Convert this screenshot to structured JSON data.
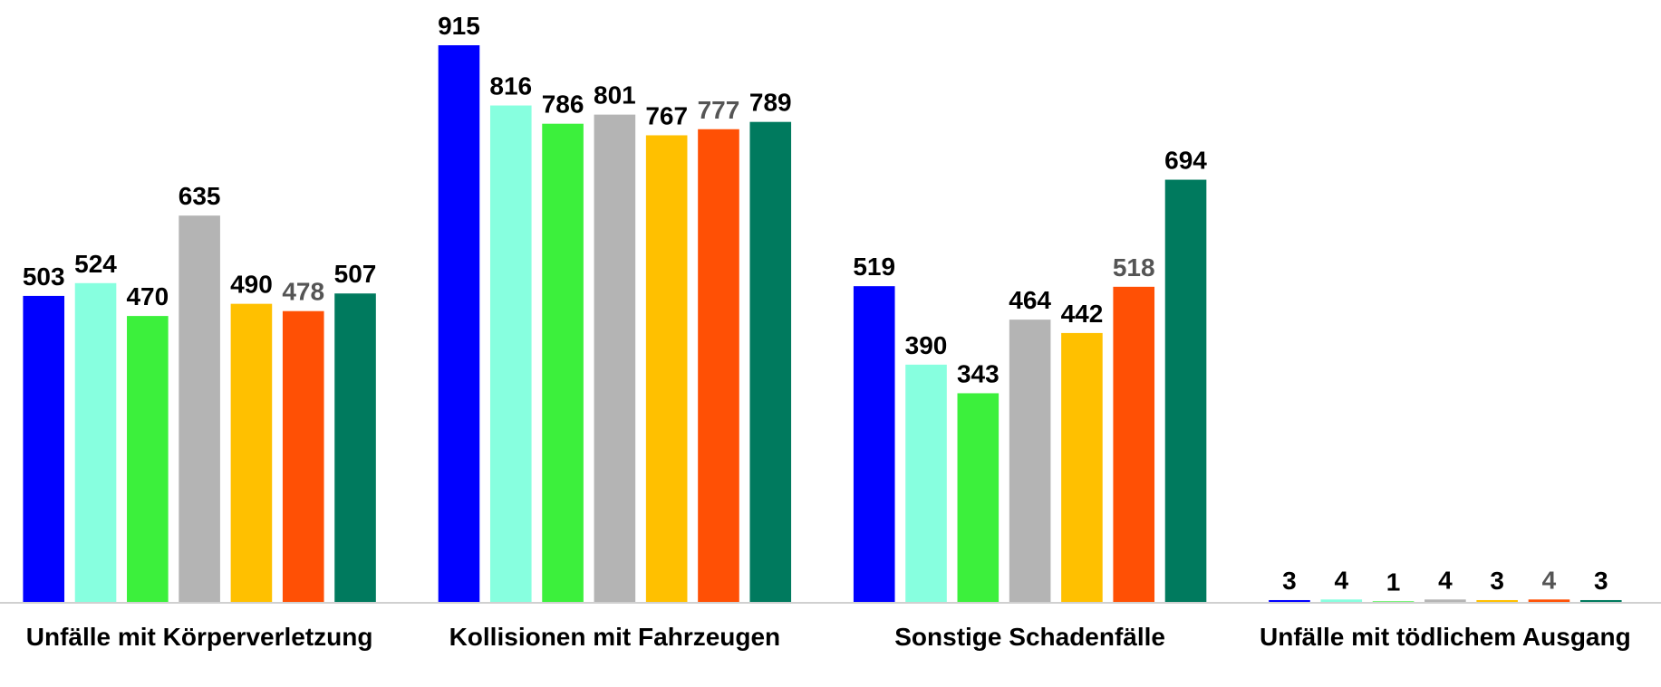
{
  "chart_data": {
    "type": "bar",
    "categories": [
      "Unfälle mit Körperverletzung",
      "Kollisionen mit Fahrzeugen",
      "Sonstige Schadenfälle",
      "Unfälle mit tödlichem Ausgang"
    ],
    "series": [
      {
        "color": "#0000ff",
        "label_color": "#000000",
        "values": [
          503,
          915,
          519,
          3
        ]
      },
      {
        "color": "#87ffdf",
        "label_color": "#000000",
        "values": [
          524,
          816,
          390,
          4
        ]
      },
      {
        "color": "#3cf03c",
        "label_color": "#000000",
        "values": [
          470,
          786,
          343,
          1
        ]
      },
      {
        "color": "#b4b4b4",
        "label_color": "#000000",
        "values": [
          635,
          801,
          464,
          4
        ]
      },
      {
        "color": "#ffc000",
        "label_color": "#000000",
        "values": [
          490,
          767,
          442,
          3
        ]
      },
      {
        "color": "#ff5005",
        "label_color": "#555555",
        "values": [
          478,
          777,
          518,
          4
        ]
      },
      {
        "color": "#007a5e",
        "label_color": "#000000",
        "values": [
          507,
          789,
          694,
          3
        ]
      }
    ],
    "grid": false
  }
}
